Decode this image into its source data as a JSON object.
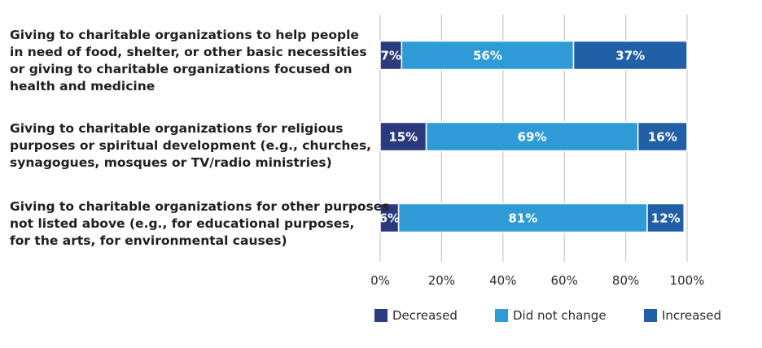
{
  "chart_data": {
    "type": "bar",
    "orientation": "horizontal",
    "stacked": true,
    "categories": [
      [
        "Giving to charitable organizations to help people",
        "in need of food, shelter, or other basic necessities",
        "or giving to charitable organizations focused on",
        "health and medicine"
      ],
      [
        "Giving to charitable organizations for religious",
        "purposes or spiritual development (e.g., churches,",
        "synagogues, mosques or TV/radio ministries)"
      ],
      [
        "Giving to charitable organizations for other purposes",
        "not listed above (e.g., for educational purposes,",
        "for the arts, for environmental causes)"
      ]
    ],
    "series": [
      {
        "name": "Decreased",
        "values": [
          7,
          15,
          6
        ],
        "labels": [
          "7%",
          "15%",
          "6%"
        ],
        "color": "#2a3a7c"
      },
      {
        "name": "Did not change",
        "values": [
          56,
          69,
          81
        ],
        "labels": [
          "56%",
          "69%",
          "81%"
        ],
        "color": "#2e9bd6"
      },
      {
        "name": "Increased",
        "values": [
          37,
          16,
          12
        ],
        "labels": [
          "37%",
          "16%",
          "12%"
        ],
        "color": "#2160a6"
      }
    ],
    "xlim": [
      0,
      100
    ],
    "xticks": [
      "0%",
      "20%",
      "40%",
      "60%",
      "80%",
      "100%"
    ],
    "grid": true,
    "legend_position": "bottom"
  }
}
